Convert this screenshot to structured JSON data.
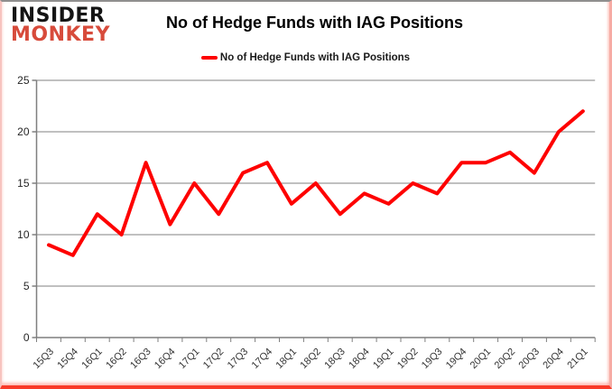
{
  "logo": {
    "line1": "INSIDER",
    "line2": "MONKEY",
    "line1_color": "#141414",
    "line2_color": "#d74b3b"
  },
  "header": {
    "title": "No of Hedge Funds with IAG Positions"
  },
  "legend": {
    "label": "No of Hedge Funds with IAG Positions",
    "swatch_color": "#fe0000"
  },
  "chart_data": {
    "type": "line",
    "title": "No of Hedge Funds with IAG Positions",
    "series_name": "No of Hedge Funds with IAG Positions",
    "categories": [
      "15Q3",
      "15Q4",
      "16Q1",
      "16Q2",
      "16Q3",
      "16Q4",
      "17Q1",
      "17Q2",
      "17Q3",
      "17Q4",
      "18Q1",
      "18Q2",
      "18Q3",
      "18Q4",
      "19Q1",
      "19Q2",
      "19Q3",
      "19Q4",
      "20Q1",
      "20Q2",
      "20Q3",
      "20Q4",
      "21Q1"
    ],
    "values": [
      9,
      8,
      12,
      10,
      17,
      11,
      15,
      12,
      16,
      17,
      13,
      15,
      12,
      14,
      13,
      15,
      14,
      17,
      17,
      18,
      16,
      20,
      22
    ],
    "xlabel": "",
    "ylabel": "",
    "ylim": [
      0,
      25
    ],
    "yticks": [
      0,
      5,
      10,
      15,
      20,
      25
    ],
    "grid": true,
    "legend_position": "top",
    "colors": {
      "line": "#fe0000",
      "grid": "#9a9a9a",
      "axis": "#7f7f7f",
      "tick_label": "#262626"
    }
  }
}
